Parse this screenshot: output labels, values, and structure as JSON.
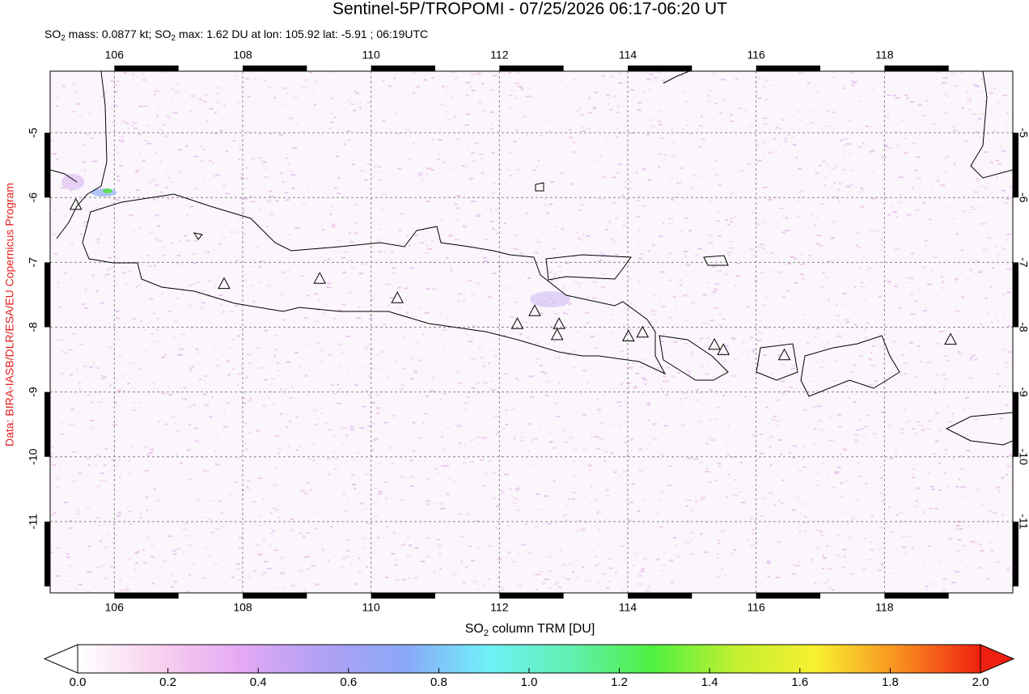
{
  "chart_data": {
    "type": "map",
    "title": "Sentinel-5P/TROPOMI - 07/25/2026 06:17-06:20 UT",
    "subtitle_parts": [
      "SO",
      "2",
      " mass: 0.0877 kt; SO",
      "2",
      " max: 1.62 DU at lon: 105.92 lat: -5.91 ; 06:19UTC"
    ],
    "credit": "Data: BIRA-IASB/DLR/ESA/EU Copernicus Program",
    "xlim": [
      105,
      120
    ],
    "ylim": [
      -12.1,
      -4.05
    ],
    "xticks": [
      106,
      108,
      110,
      112,
      114,
      116,
      118
    ],
    "yticks": [
      -5,
      -6,
      -7,
      -8,
      -9,
      -10,
      -11
    ],
    "grid": true,
    "volcanoes": {
      "lon": [
        105.4,
        107.71,
        109.2,
        110.41,
        112.28,
        112.55,
        112.93,
        112.9,
        114.01,
        114.23,
        115.35,
        115.49,
        116.44,
        119.03
      ],
      "lat": [
        -6.12,
        -7.34,
        -7.26,
        -7.56,
        -7.96,
        -7.76,
        -7.96,
        -8.13,
        -8.15,
        -8.09,
        -8.28,
        -8.36,
        -8.44,
        -8.2
      ]
    },
    "colorbar": {
      "label_parts": [
        "SO",
        "2",
        " column TRM [DU]"
      ],
      "lim": [
        0,
        2
      ],
      "ticks": [
        {
          "value": 0,
          "label": "0.0"
        },
        {
          "value": 0.2,
          "label": "0.2"
        },
        {
          "value": 0.4,
          "label": "0.4"
        },
        {
          "value": 0.6,
          "label": "0.6"
        },
        {
          "value": 0.8,
          "label": "0.8"
        },
        {
          "value": 1.0,
          "label": "1.0"
        },
        {
          "value": 1.2,
          "label": "1.2"
        },
        {
          "value": 1.4,
          "label": "1.4"
        },
        {
          "value": 1.6,
          "label": "1.6"
        },
        {
          "value": 1.8,
          "label": "1.8"
        },
        {
          "value": 2.0,
          "label": "2.0"
        }
      ],
      "colors": [
        "#ffffff",
        "#f8d0ee",
        "#e4a8f4",
        "#b0a0f4",
        "#8aa8f8",
        "#70f0f8",
        "#60f0b0",
        "#50f040",
        "#c0f030",
        "#f8f030",
        "#f89020",
        "#f02010"
      ]
    }
  }
}
